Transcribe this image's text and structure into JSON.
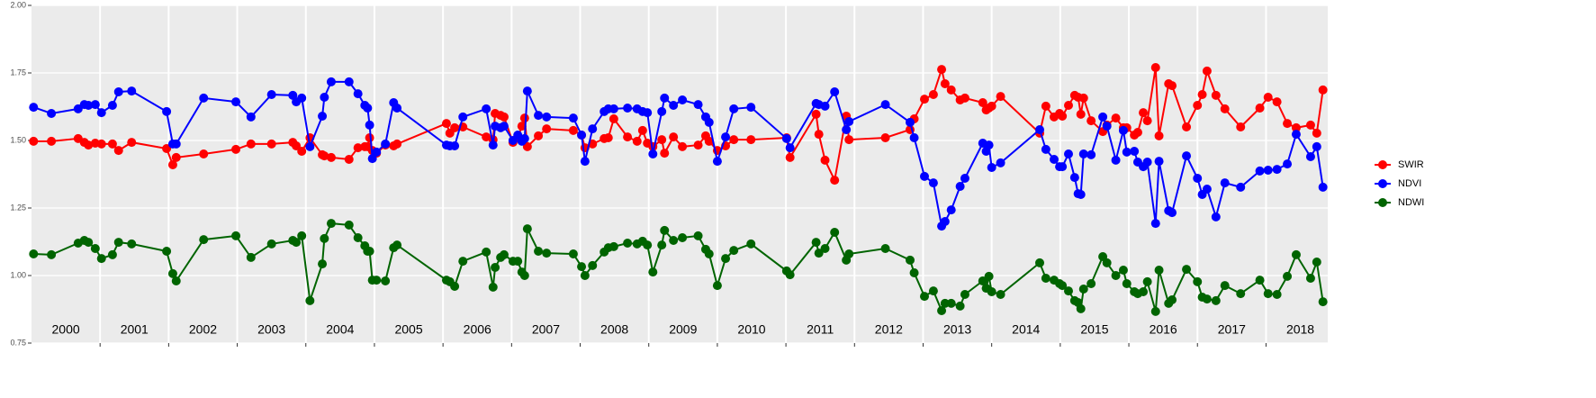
{
  "chart_data": {
    "type": "line",
    "xlim": [
      2000,
      2018.9
    ],
    "x_gridlines": [
      2001,
      2002,
      2003,
      2004,
      2005,
      2006,
      2007,
      2008,
      2009,
      2010,
      2011,
      2012,
      2013,
      2014,
      2015,
      2016,
      2017,
      2018
    ],
    "xticks": [
      {
        "value": 2000.5,
        "label": "2000"
      },
      {
        "value": 2001.5,
        "label": "2001"
      },
      {
        "value": 2002.5,
        "label": "2002"
      },
      {
        "value": 2003.5,
        "label": "2003"
      },
      {
        "value": 2004.5,
        "label": "2004"
      },
      {
        "value": 2005.5,
        "label": "2005"
      },
      {
        "value": 2006.5,
        "label": "2006"
      },
      {
        "value": 2007.5,
        "label": "2007"
      },
      {
        "value": 2008.5,
        "label": "2008"
      },
      {
        "value": 2009.5,
        "label": "2009"
      },
      {
        "value": 2010.5,
        "label": "2010"
      },
      {
        "value": 2011.5,
        "label": "2011"
      },
      {
        "value": 2012.5,
        "label": "2012"
      },
      {
        "value": 2013.5,
        "label": "2013"
      },
      {
        "value": 2014.5,
        "label": "2014"
      },
      {
        "value": 2015.5,
        "label": "2015"
      },
      {
        "value": 2016.5,
        "label": "2016"
      },
      {
        "value": 2017.5,
        "label": "2017"
      },
      {
        "value": 2018.5,
        "label": "2018"
      }
    ],
    "ylim": [
      0.75,
      2.0
    ],
    "yticks": [
      0.75,
      {
        "value": 1.0,
        "label": "1.00"
      },
      1.25,
      {
        "value": 1.5,
        "label": "1.50"
      },
      1.75,
      {
        "value": 2.0,
        "label": "2.00"
      }
    ],
    "grid": true,
    "legend": "right",
    "x": [
      2000.03,
      2000.29,
      2000.68,
      2000.77,
      2000.83,
      2000.93,
      2001.02,
      2001.18,
      2001.27,
      2001.46,
      2001.97,
      2002.06,
      2002.11,
      2002.51,
      2002.98,
      2003.2,
      2003.5,
      2003.81,
      2003.86,
      2003.94,
      2004.06,
      2004.24,
      2004.27,
      2004.37,
      2004.63,
      2004.76,
      2004.86,
      2004.9,
      2004.93,
      2004.97,
      2005.03,
      2005.16,
      2005.28,
      2005.33,
      2006.05,
      2006.1,
      2006.17,
      2006.29,
      2006.63,
      2006.73,
      2006.76,
      2006.84,
      2006.89,
      2007.02,
      2007.09,
      2007.15,
      2007.19,
      2007.23,
      2007.39,
      2007.51,
      2007.9,
      2008.02,
      2008.07,
      2008.18,
      2008.35,
      2008.41,
      2008.49,
      2008.69,
      2008.83,
      2008.91,
      2008.98,
      2009.06,
      2009.19,
      2009.23,
      2009.36,
      2009.49,
      2009.72,
      2009.83,
      2009.88,
      2010.0,
      2010.12,
      2010.24,
      2010.49,
      2011.01,
      2011.06,
      2011.44,
      2011.48,
      2011.57,
      2011.71,
      2011.88,
      2011.92,
      2012.45,
      2012.81,
      2012.87,
      2013.02,
      2013.15,
      2013.27,
      2013.32,
      2013.41,
      2013.54,
      2013.61,
      2013.87,
      2013.92,
      2013.96,
      2014.0,
      2014.13,
      2014.7,
      2014.79,
      2014.91,
      2014.99,
      2015.03,
      2015.12,
      2015.21,
      2015.26,
      2015.3,
      2015.34,
      2015.45,
      2015.62,
      2015.68,
      2015.81,
      2015.92,
      2015.97,
      2016.08,
      2016.13,
      2016.21,
      2016.27,
      2016.39,
      2016.44,
      2016.58,
      2016.63,
      2016.84,
      2017.0,
      2017.07,
      2017.14,
      2017.27,
      2017.4,
      2017.63,
      2017.91,
      2018.03,
      2018.16,
      2018.31,
      2018.44,
      2018.65,
      2018.74,
      2018.83
    ],
    "series": [
      {
        "name": "SWIR",
        "color": "#ff0000",
        "values": [
          1.497,
          1.497,
          1.507,
          1.493,
          1.483,
          1.49,
          1.487,
          1.487,
          1.463,
          1.493,
          1.47,
          1.41,
          1.437,
          1.45,
          1.467,
          1.487,
          1.487,
          1.493,
          1.48,
          1.46,
          1.51,
          1.447,
          1.443,
          1.437,
          1.43,
          1.473,
          1.477,
          1.477,
          1.51,
          1.463,
          1.453,
          1.483,
          1.48,
          1.487,
          1.563,
          1.527,
          1.547,
          1.55,
          1.513,
          1.503,
          1.6,
          1.593,
          1.587,
          1.493,
          1.51,
          1.553,
          1.583,
          1.477,
          1.517,
          1.543,
          1.537,
          1.52,
          1.473,
          1.487,
          1.507,
          1.51,
          1.58,
          1.513,
          1.497,
          1.537,
          1.49,
          1.477,
          1.503,
          1.453,
          1.513,
          1.477,
          1.483,
          1.517,
          1.497,
          1.463,
          1.48,
          1.503,
          1.503,
          1.51,
          1.437,
          1.597,
          1.523,
          1.427,
          1.353,
          1.59,
          1.503,
          1.51,
          1.54,
          1.58,
          1.653,
          1.67,
          1.763,
          1.71,
          1.687,
          1.65,
          1.657,
          1.64,
          1.613,
          1.62,
          1.627,
          1.663,
          1.527,
          1.627,
          1.587,
          1.6,
          1.59,
          1.63,
          1.667,
          1.66,
          1.597,
          1.657,
          1.573,
          1.533,
          1.557,
          1.583,
          1.547,
          1.547,
          1.52,
          1.53,
          1.603,
          1.573,
          1.77,
          1.517,
          1.71,
          1.703,
          1.55,
          1.63,
          1.67,
          1.757,
          1.667,
          1.617,
          1.55,
          1.62,
          1.66,
          1.643,
          1.563,
          1.547,
          1.557,
          1.527,
          1.687
        ]
      },
      {
        "name": "NDVI",
        "color": "#0000ff",
        "values": [
          1.623,
          1.6,
          1.617,
          1.633,
          1.63,
          1.633,
          1.603,
          1.63,
          1.68,
          1.683,
          1.607,
          1.487,
          1.487,
          1.657,
          1.643,
          1.587,
          1.67,
          1.667,
          1.643,
          1.657,
          1.477,
          1.59,
          1.66,
          1.717,
          1.717,
          1.673,
          1.63,
          1.62,
          1.557,
          1.433,
          1.457,
          1.487,
          1.64,
          1.62,
          1.483,
          1.48,
          1.48,
          1.587,
          1.617,
          1.483,
          1.553,
          1.547,
          1.553,
          1.5,
          1.52,
          1.497,
          1.507,
          1.683,
          1.593,
          1.587,
          1.583,
          1.52,
          1.423,
          1.543,
          1.607,
          1.617,
          1.617,
          1.62,
          1.617,
          1.607,
          1.603,
          1.45,
          1.607,
          1.657,
          1.63,
          1.65,
          1.633,
          1.587,
          1.567,
          1.423,
          1.513,
          1.617,
          1.623,
          1.507,
          1.473,
          1.637,
          1.633,
          1.627,
          1.68,
          1.54,
          1.57,
          1.633,
          1.567,
          1.51,
          1.367,
          1.343,
          1.183,
          1.2,
          1.243,
          1.33,
          1.36,
          1.49,
          1.46,
          1.483,
          1.4,
          1.417,
          1.54,
          1.467,
          1.43,
          1.403,
          1.403,
          1.45,
          1.363,
          1.303,
          1.3,
          1.45,
          1.447,
          1.587,
          1.553,
          1.427,
          1.537,
          1.457,
          1.46,
          1.42,
          1.403,
          1.42,
          1.193,
          1.423,
          1.24,
          1.233,
          1.443,
          1.36,
          1.3,
          1.32,
          1.217,
          1.343,
          1.327,
          1.387,
          1.39,
          1.393,
          1.413,
          1.523,
          1.44,
          1.477,
          1.327
        ]
      },
      {
        "name": "NDWI",
        "color": "#006400",
        "values": [
          1.08,
          1.077,
          1.12,
          1.13,
          1.123,
          1.1,
          1.063,
          1.077,
          1.123,
          1.117,
          1.09,
          1.007,
          0.98,
          1.133,
          1.147,
          1.067,
          1.117,
          1.13,
          1.123,
          1.147,
          0.907,
          1.043,
          1.137,
          1.193,
          1.187,
          1.14,
          1.11,
          1.09,
          1.09,
          0.983,
          0.983,
          0.98,
          1.103,
          1.113,
          0.983,
          0.977,
          0.96,
          1.053,
          1.087,
          0.957,
          1.03,
          1.067,
          1.077,
          1.053,
          1.053,
          1.013,
          1.0,
          1.173,
          1.09,
          1.083,
          1.08,
          1.033,
          1.0,
          1.037,
          1.087,
          1.103,
          1.107,
          1.12,
          1.117,
          1.127,
          1.113,
          1.013,
          1.113,
          1.167,
          1.13,
          1.14,
          1.147,
          1.097,
          1.08,
          0.963,
          1.063,
          1.093,
          1.117,
          1.017,
          1.003,
          1.123,
          1.083,
          1.1,
          1.16,
          1.057,
          1.08,
          1.1,
          1.057,
          1.01,
          0.923,
          0.943,
          0.87,
          0.897,
          0.897,
          0.887,
          0.93,
          0.98,
          0.953,
          0.997,
          0.94,
          0.93,
          1.047,
          0.99,
          0.983,
          0.97,
          0.963,
          0.943,
          0.907,
          0.9,
          0.877,
          0.95,
          0.97,
          1.07,
          1.047,
          1.0,
          1.02,
          0.97,
          0.94,
          0.933,
          0.94,
          0.977,
          0.867,
          1.02,
          0.897,
          0.91,
          1.023,
          0.977,
          0.92,
          0.913,
          0.907,
          0.963,
          0.933,
          0.983,
          0.933,
          0.93,
          0.997,
          1.077,
          0.99,
          1.05,
          0.903
        ]
      }
    ]
  }
}
